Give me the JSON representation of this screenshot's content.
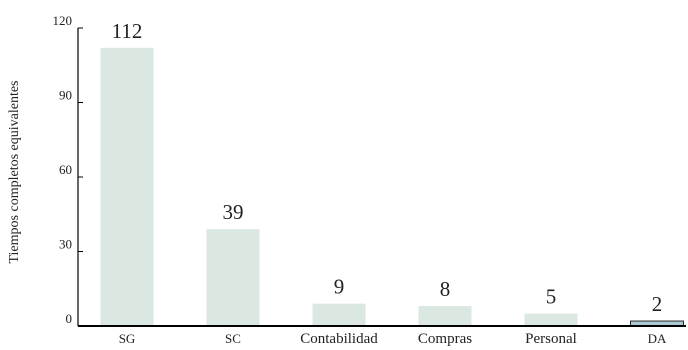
{
  "chart_data": {
    "type": "bar",
    "title": "",
    "xlabel": "",
    "ylabel": "Tiempos completos equivalentes",
    "ylim": [
      0,
      120
    ],
    "yticks": [
      0,
      30,
      60,
      90,
      120
    ],
    "grid": false,
    "legend": "none",
    "categories": [
      "SG",
      "SC",
      "Contabilidad",
      "Compras",
      "Personal",
      "DA"
    ],
    "values": [
      112,
      39,
      9,
      8,
      5,
      2
    ],
    "data_labels": [
      "112",
      "39",
      "9",
      "8",
      "5",
      "2"
    ],
    "colors": {
      "bar": "#dbe7e1",
      "highlight_bar": "#a9c8d2",
      "highlight_edge": "#2b2b2b",
      "axis": "#000000"
    },
    "highlight_index": 5
  }
}
